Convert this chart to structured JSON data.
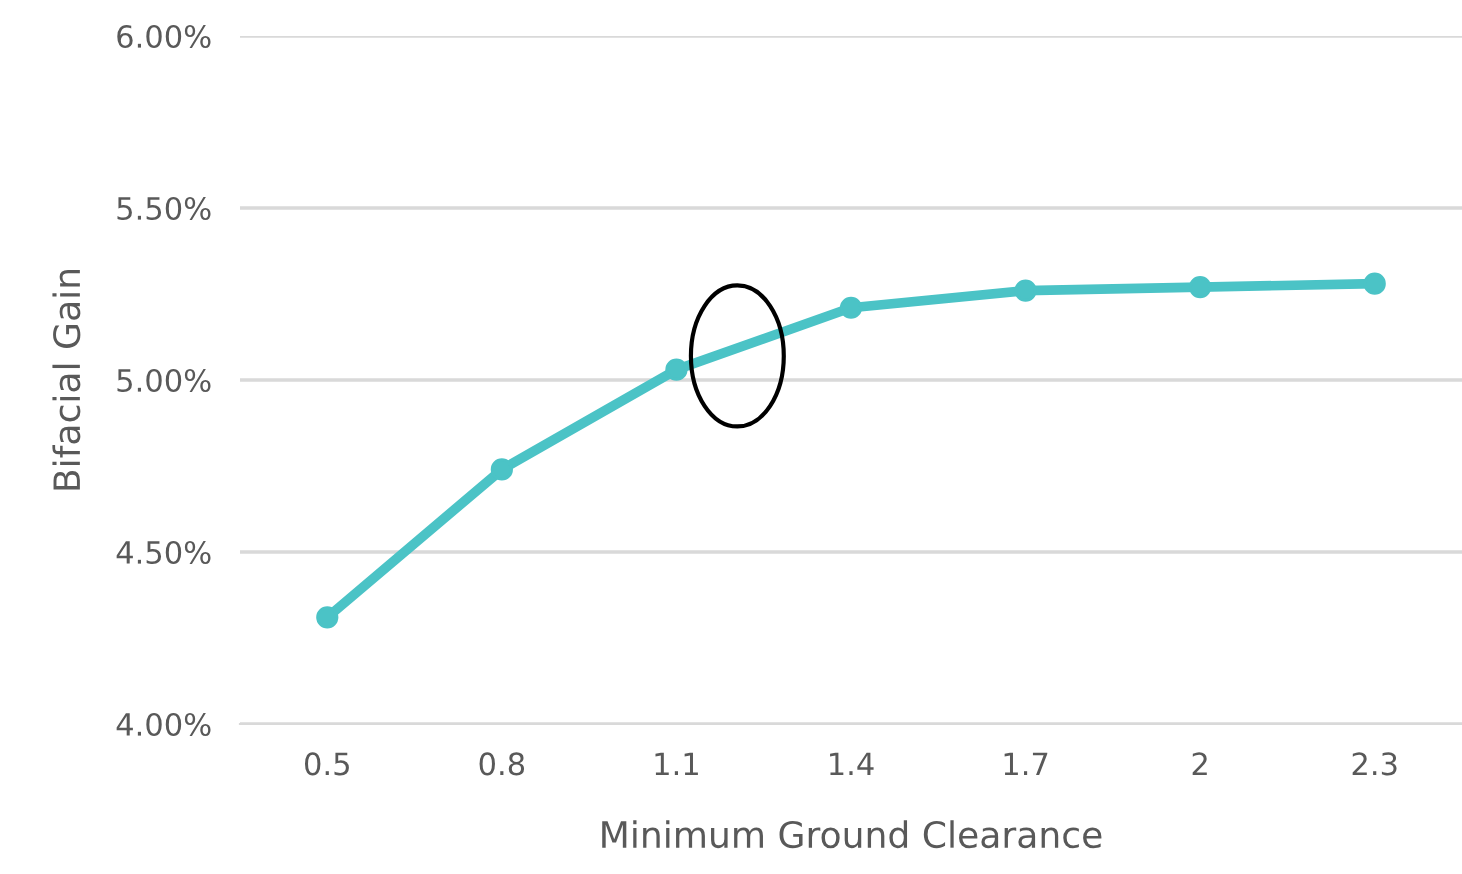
{
  "chart_data": {
    "type": "line",
    "xlabel": "Minimum Ground Clearance",
    "ylabel": "Bifacial Gain",
    "categories": [
      "0.5",
      "0.8",
      "1.1",
      "1.4",
      "1.7",
      "2",
      "2.3"
    ],
    "series": [
      {
        "color": "#4bc3c6",
        "values": [
          4.31,
          4.74,
          5.03,
          5.21,
          5.26,
          5.27,
          5.28
        ]
      }
    ],
    "ylim": [
      4.0,
      6.0
    ],
    "yticks": [
      {
        "value": 4.0,
        "label": "4.00%"
      },
      {
        "value": 4.5,
        "label": "4.50%"
      },
      {
        "value": 5.0,
        "label": "5.00%"
      },
      {
        "value": 5.5,
        "label": "5.50%"
      },
      {
        "value": 6.0,
        "label": "6.00%"
      }
    ],
    "grid": "y",
    "marker": "circle",
    "line_style": "solid"
  }
}
